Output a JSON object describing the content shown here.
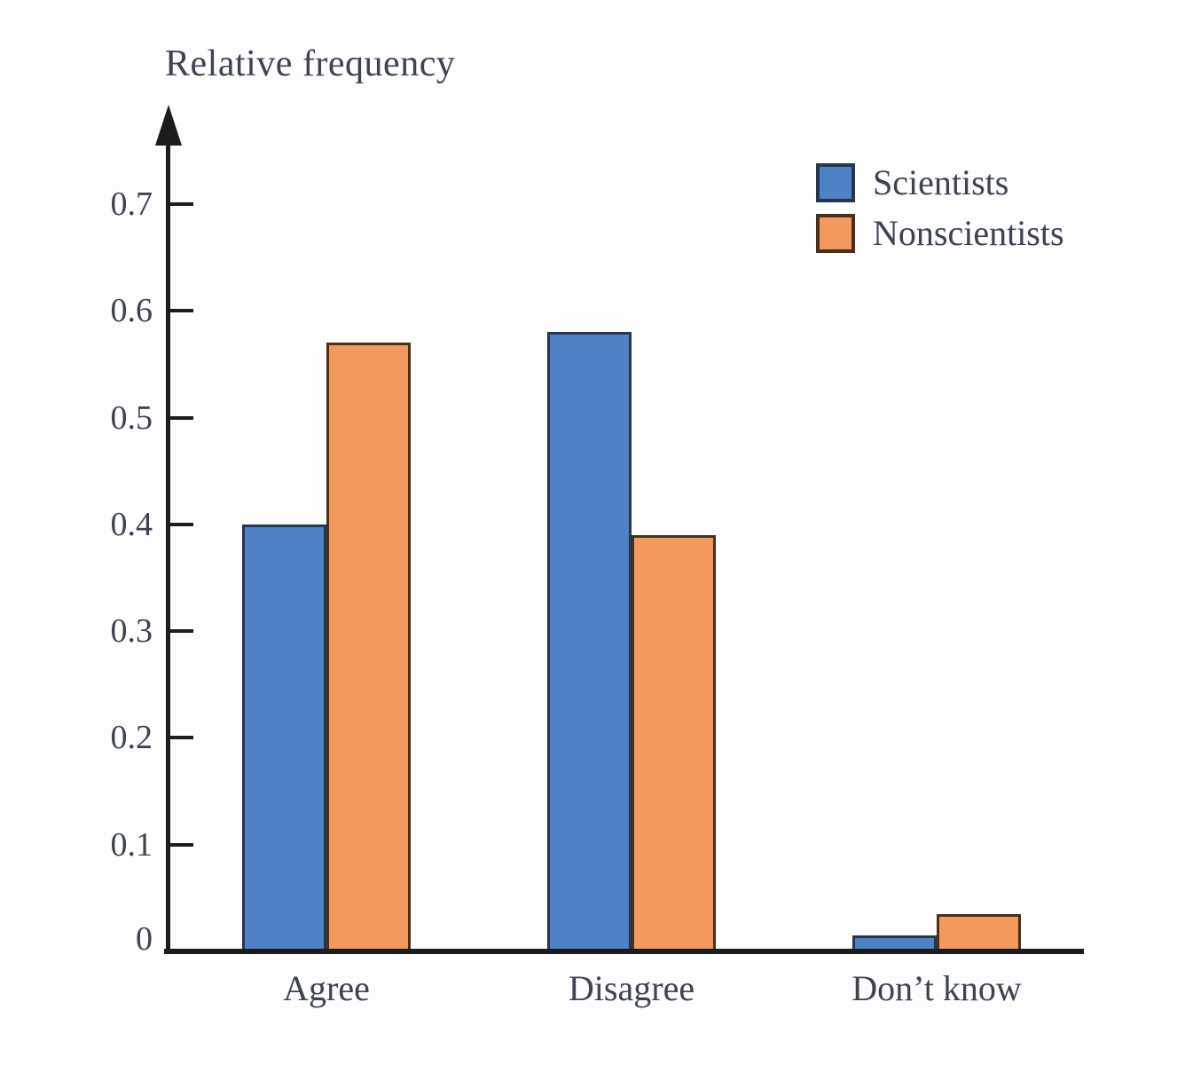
{
  "chart_data": {
    "type": "bar",
    "title": "Relative frequency",
    "ylabel": "Relative frequency",
    "xlabel": "",
    "categories": [
      "Agree",
      "Disagree",
      "Don’t know"
    ],
    "series": [
      {
        "name": "Scientists",
        "color": "#4e82c4",
        "border_color": "#26364e",
        "values": [
          0.4,
          0.58,
          0.015
        ]
      },
      {
        "name": "Nonscientists",
        "color": "#f4995d",
        "border_color": "#47311c",
        "values": [
          0.57,
          0.39,
          0.035
        ]
      }
    ],
    "ylim": [
      0,
      0.75
    ],
    "yticks": [
      0,
      0.1,
      0.2,
      0.3,
      0.4,
      0.5,
      0.6,
      0.7
    ],
    "ytick_labels": [
      "0",
      "0.1",
      "0.2",
      "0.3",
      "0.4",
      "0.5",
      "0.6",
      "0.7"
    ],
    "grid": false,
    "legend_position": "upper right"
  },
  "colors": {
    "axis": "#1c1c1c",
    "text": "#3d4354",
    "background": "#fdfdfd"
  }
}
